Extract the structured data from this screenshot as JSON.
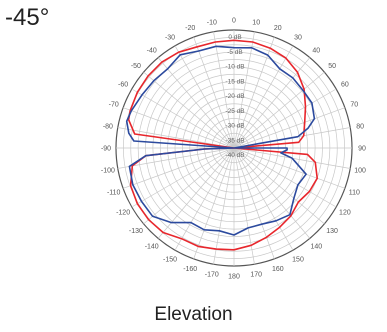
{
  "angle_label": "-45°",
  "chart_data": {
    "type": "line",
    "polar": true,
    "title": "Elevation",
    "subtitle": "-45°",
    "theta_unit": "deg",
    "radial_unit": "dB",
    "radial_range": [
      -40,
      0
    ],
    "grid": true,
    "angle_tick_labels": [
      "0",
      "10",
      "20",
      "30",
      "40",
      "50",
      "60",
      "70",
      "80",
      "90",
      "100",
      "110",
      "120",
      "130",
      "140",
      "150",
      "160",
      "170",
      "180",
      "-170",
      "-160",
      "-150",
      "-140",
      "-130",
      "-120",
      "-110",
      "-100",
      "-90",
      "-80",
      "-70",
      "-60",
      "-50",
      "-40",
      "-30",
      "-20",
      "-10"
    ],
    "radial_tick_labels": [
      "0 dB",
      "-5 dB",
      "-10 dB",
      "-15 dB",
      "-20 dB",
      "-25 dB",
      "-30 dB",
      "-35 dB",
      "-40 dB"
    ],
    "colors": {
      "red": "#e8262c",
      "blue": "#2c4a9e",
      "grid": "#c8c8c8",
      "rim": "#555555"
    },
    "series": [
      {
        "color": "#e8262c",
        "theta": [
          -90,
          -82,
          -75,
          -70,
          -60,
          -50,
          -40,
          -30,
          -20,
          -10,
          0,
          10,
          20,
          30,
          40,
          50,
          60,
          70,
          80,
          85,
          90,
          95,
          100,
          110,
          120,
          130,
          140,
          150,
          160,
          170,
          180,
          -170,
          -160,
          -150,
          -140,
          -130,
          -120,
          -110,
          -100,
          -95,
          -92
        ],
        "r": [
          -40,
          -6,
          -3,
          -2.6,
          -2.2,
          -2,
          -2,
          -2.5,
          -3.5,
          -3.5,
          -3.5,
          -3.5,
          -4,
          -4.8,
          -6.5,
          -9,
          -12,
          -14.5,
          -16,
          -18,
          -40,
          -15,
          -12,
          -10,
          -10.5,
          -11.5,
          -10,
          -9,
          -7.8,
          -6.5,
          -5.5,
          -5.2,
          -4.5,
          -4.5,
          -2.6,
          -2.2,
          -2.2,
          -2.7,
          -5,
          -10,
          -30
        ]
      },
      {
        "color": "#2c4a9e",
        "theta": [
          -90,
          -86,
          -82,
          -76,
          -70,
          -60,
          -50,
          -40,
          -30,
          -20,
          -10,
          0,
          10,
          20,
          30,
          40,
          50,
          60,
          70,
          75,
          80,
          88,
          90,
          92,
          96,
          100,
          110,
          120,
          130,
          140,
          150,
          160,
          170,
          180,
          -170,
          -160,
          -150,
          -140,
          -130,
          -120,
          -110,
          -100,
          -95,
          -92
        ],
        "r": [
          -40,
          -6,
          -4,
          -2.5,
          -3,
          -4,
          -4.5,
          -5,
          -3.5,
          -5,
          -5,
          -6,
          -5.5,
          -6.5,
          -9,
          -9,
          -9.5,
          -9.5,
          -11,
          -14,
          -18,
          -40,
          -22,
          -22,
          -24,
          -20,
          -14,
          -15,
          -13.5,
          -10.5,
          -11.5,
          -12.5,
          -12.5,
          -10.5,
          -11.5,
          -10.5,
          -10.8,
          -7,
          -4,
          -3.8,
          -3.5,
          -4,
          -10,
          -30
        ]
      }
    ]
  }
}
